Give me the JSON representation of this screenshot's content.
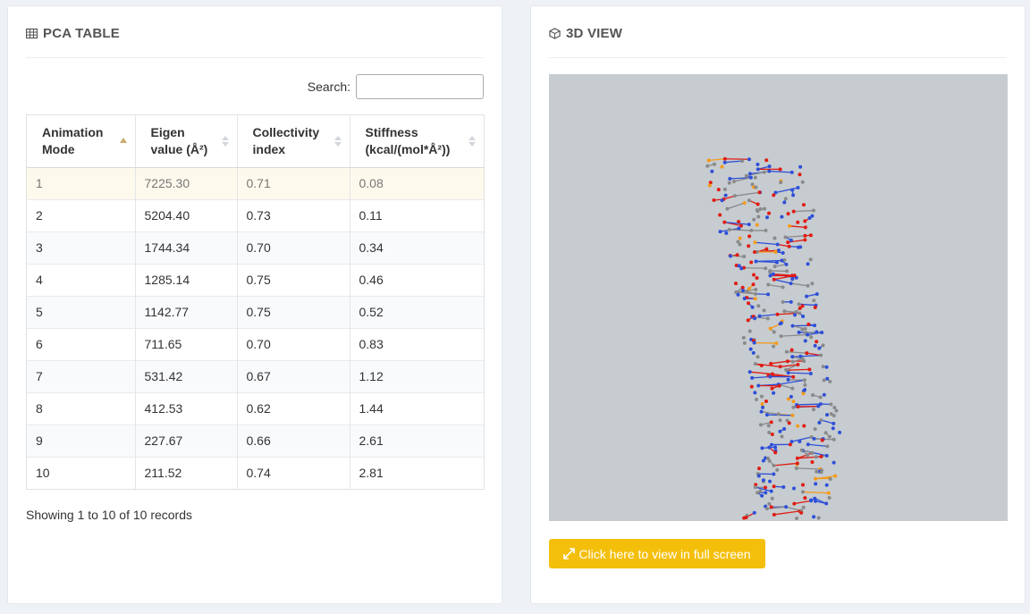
{
  "pca_panel": {
    "title": "PCA TABLE",
    "icon": "table-icon",
    "search": {
      "label": "Search:",
      "value": "",
      "placeholder": ""
    },
    "columns": [
      [
        "Animation",
        "Mode"
      ],
      [
        "Eigen",
        "value (Å²)"
      ],
      [
        "Collectivity",
        "index"
      ],
      [
        "Stiffness",
        "(kcal/(mol*Å²))"
      ]
    ],
    "rows": [
      [
        "1",
        "7225.30",
        "0.71",
        "0.08"
      ],
      [
        "2",
        "5204.40",
        "0.73",
        "0.11"
      ],
      [
        "3",
        "1744.34",
        "0.70",
        "0.34"
      ],
      [
        "4",
        "1285.14",
        "0.75",
        "0.46"
      ],
      [
        "5",
        "1142.77",
        "0.75",
        "0.52"
      ],
      [
        "6",
        "711.65",
        "0.70",
        "0.83"
      ],
      [
        "7",
        "531.42",
        "0.67",
        "1.12"
      ],
      [
        "8",
        "412.53",
        "0.62",
        "1.44"
      ],
      [
        "9",
        "227.67",
        "0.66",
        "2.61"
      ],
      [
        "10",
        "211.52",
        "0.74",
        "2.81"
      ]
    ],
    "info": "Showing 1 to 10 of 10 records"
  },
  "view_panel": {
    "title": "3D VIEW",
    "icon": "cube-icon",
    "fullscreen_label": "Click here to view in full screen",
    "fullscreen_icon": "expand-icon"
  },
  "colors": {
    "viewer_bg": "#c6ccd0",
    "accent_button": "#f4bf0b",
    "atom_carbon": "#8a8a8a",
    "atom_oxygen": "#e11b12",
    "atom_nitrogen": "#2e4fd8",
    "atom_phosphorus": "#f59a1a"
  }
}
